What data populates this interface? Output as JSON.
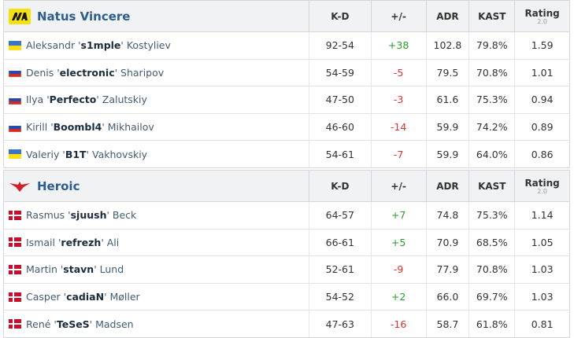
{
  "teams": [
    {
      "name": "Natus Vincere",
      "logo": "navi",
      "columns": {
        "kd": "K-D",
        "diff": "+/-",
        "adr": "ADR",
        "kast": "KAST",
        "rating": "Rating",
        "rating_version": "2.0"
      },
      "players": [
        {
          "flag": "ua",
          "first": "Aleksandr '",
          "nick": "s1mple",
          "last": "' Kostyliev",
          "kd": "92-54",
          "diff": "+38",
          "adr": "102.8",
          "kast": "79.8%",
          "rating": "1.59"
        },
        {
          "flag": "ru",
          "first": "Denis '",
          "nick": "electronic",
          "last": "' Sharipov",
          "kd": "54-59",
          "diff": "-5",
          "adr": "79.5",
          "kast": "70.8%",
          "rating": "1.01"
        },
        {
          "flag": "ru",
          "first": "Ilya '",
          "nick": "Perfecto",
          "last": "' Zalutskiy",
          "kd": "47-50",
          "diff": "-3",
          "adr": "61.6",
          "kast": "75.3%",
          "rating": "0.94"
        },
        {
          "flag": "ru",
          "first": "Kirill '",
          "nick": "Boombl4",
          "last": "' Mikhailov",
          "kd": "46-60",
          "diff": "-14",
          "adr": "59.9",
          "kast": "74.2%",
          "rating": "0.89"
        },
        {
          "flag": "ua",
          "first": "Valeriy '",
          "nick": "B1T",
          "last": "' Vakhovskiy",
          "kd": "54-61",
          "diff": "-7",
          "adr": "59.9",
          "kast": "64.0%",
          "rating": "0.86"
        }
      ]
    },
    {
      "name": "Heroic",
      "logo": "heroic",
      "columns": {
        "kd": "K-D",
        "diff": "+/-",
        "adr": "ADR",
        "kast": "KAST",
        "rating": "Rating",
        "rating_version": "2.0"
      },
      "players": [
        {
          "flag": "dk",
          "first": "Rasmus '",
          "nick": "sjuush",
          "last": "' Beck",
          "kd": "64-57",
          "diff": "+7",
          "adr": "74.8",
          "kast": "75.3%",
          "rating": "1.14"
        },
        {
          "flag": "dk",
          "first": "Ismail '",
          "nick": "refrezh",
          "last": "' Ali",
          "kd": "66-61",
          "diff": "+5",
          "adr": "70.9",
          "kast": "68.5%",
          "rating": "1.05"
        },
        {
          "flag": "dk",
          "first": "Martin '",
          "nick": "stavn",
          "last": "' Lund",
          "kd": "52-61",
          "diff": "-9",
          "adr": "77.9",
          "kast": "70.8%",
          "rating": "1.03"
        },
        {
          "flag": "dk",
          "first": "Casper '",
          "nick": "cadiaN",
          "last": "' Møller",
          "kd": "54-52",
          "diff": "+2",
          "adr": "66.0",
          "kast": "69.7%",
          "rating": "1.03"
        },
        {
          "flag": "dk",
          "first": "René '",
          "nick": "TeSeS",
          "last": "' Madsen",
          "kd": "47-63",
          "diff": "-16",
          "adr": "58.7",
          "kast": "61.8%",
          "rating": "0.81"
        }
      ]
    }
  ]
}
